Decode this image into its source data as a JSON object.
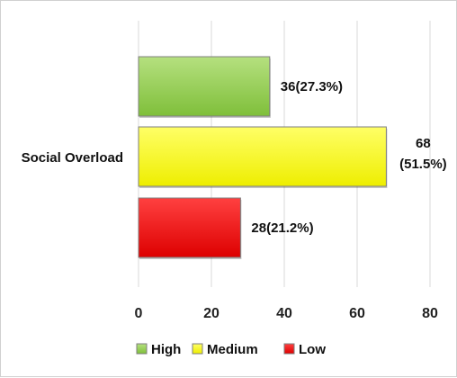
{
  "chart_data": {
    "type": "bar",
    "orientation": "horizontal",
    "category": "Social Overload",
    "xlim": [
      0,
      80
    ],
    "xticks": [
      0,
      20,
      40,
      60,
      80
    ],
    "grid": true,
    "legend_position": "bottom",
    "series": [
      {
        "name": "High",
        "value": 36,
        "label": "36(27.3%)",
        "color": "#92D050"
      },
      {
        "name": "Medium",
        "value": 68,
        "label_lines": [
          "68",
          "(51.5%)"
        ],
        "color": "#FFFF00"
      },
      {
        "name": "Low",
        "value": 28,
        "label": "28(21.2%)",
        "color": "#FF0000"
      }
    ]
  }
}
